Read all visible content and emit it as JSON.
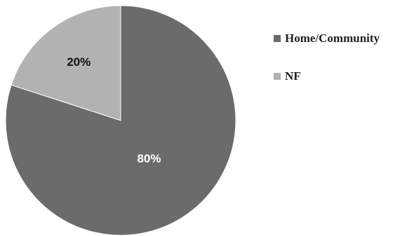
{
  "chart_data": {
    "type": "pie",
    "title": "",
    "categories": [
      "Home/Community",
      "NF"
    ],
    "values": [
      80,
      20
    ],
    "data_labels": [
      "80%",
      "20%"
    ],
    "colors": [
      "#6b6b6b",
      "#b2b2b2"
    ],
    "label_colors": [
      "#ffffff",
      "#111111"
    ],
    "legend_position": "right",
    "start_angle_deg": 0,
    "direction": "clockwise-from-top"
  }
}
